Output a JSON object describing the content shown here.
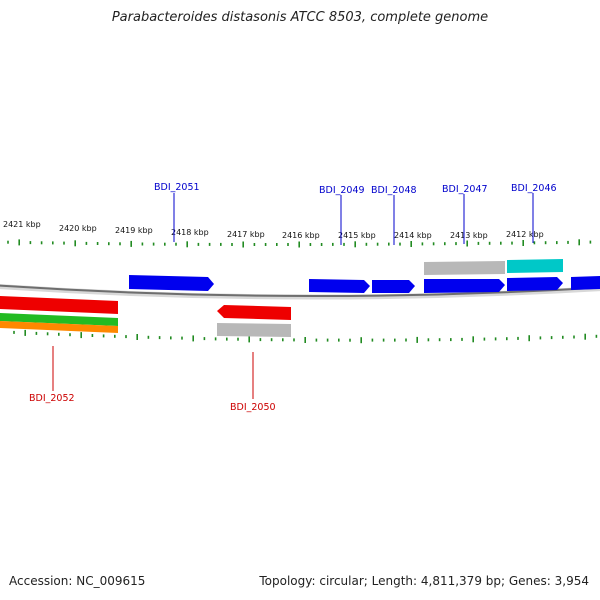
{
  "title": "Parabacteroides distasonis ATCC 8503, complete genome",
  "footer": {
    "accession": "Accession: NC_009615",
    "stats": "Topology: circular; Length: 4,811,379 bp; Genes: 3,954"
  },
  "colors": {
    "forward_gene": "#0000ee",
    "reverse_gene": "#ee0000",
    "gray_feature": "#b0b0b0",
    "cyan_feature": "#00c8c8",
    "green_feature": "#22bb22",
    "orange_feature": "#ff8800",
    "tick": "#228b22",
    "backbone": "#888888"
  },
  "kbp_labels": [
    "2421 kbp",
    "2420 kbp",
    "2419 kbp",
    "2418 kbp",
    "2417 kbp",
    "2416 kbp",
    "2415 kbp",
    "2414 kbp",
    "2413 kbp",
    "2412 kbp"
  ],
  "gene_labels_top": [
    "BDI_2051",
    "BDI_2049",
    "BDI_2048",
    "BDI_2047",
    "BDI_2046"
  ],
  "gene_labels_bottom": [
    "BDI_2052",
    "BDI_2050"
  ]
}
